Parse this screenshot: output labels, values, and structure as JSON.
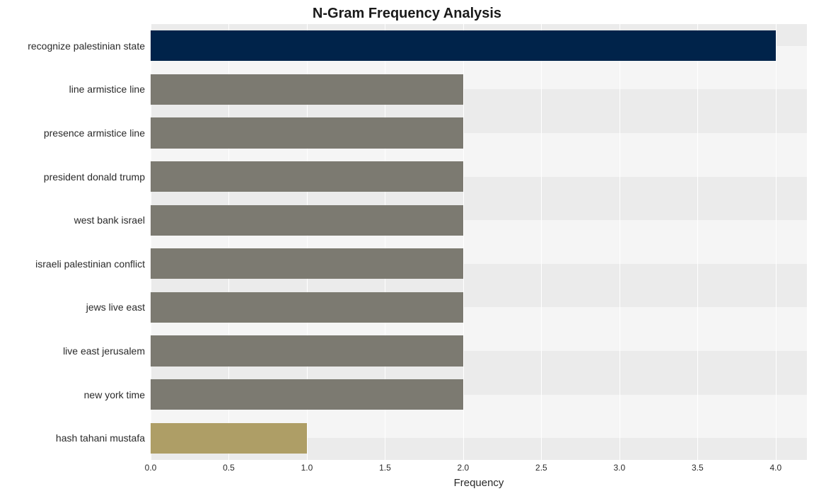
{
  "chart": {
    "type": "bar-horizontal",
    "title": "N-Gram Frequency Analysis",
    "title_fontsize": 20,
    "title_fontweight": "bold",
    "x_axis_label": "Frequency",
    "x_axis_label_fontsize": 15,
    "y_label_fontsize": 14,
    "x_tick_fontsize": 12,
    "background_color": "#ffffff",
    "band_color_dark": "#ebebeb",
    "band_color_light": "#f5f5f5",
    "grid_color": "#ffffff",
    "xlim": [
      0.0,
      4.2
    ],
    "x_ticks": [
      0.0,
      0.5,
      1.0,
      1.5,
      2.0,
      2.5,
      3.0,
      3.5,
      4.0
    ],
    "x_tick_labels": [
      "0.0",
      "0.5",
      "1.0",
      "1.5",
      "2.0",
      "2.5",
      "3.0",
      "3.5",
      "4.0"
    ],
    "bar_height_ratio": 0.7,
    "categories": [
      "recognize palestinian state",
      "line armistice line",
      "presence armistice line",
      "president donald trump",
      "west bank israel",
      "israeli palestinian conflict",
      "jews live east",
      "live east jerusalem",
      "new york time",
      "hash tahani mustafa"
    ],
    "values": [
      4,
      2,
      2,
      2,
      2,
      2,
      2,
      2,
      2,
      1
    ],
    "bar_colors": [
      "#00234a",
      "#7c7a71",
      "#7c7a71",
      "#7c7a71",
      "#7c7a71",
      "#7c7a71",
      "#7c7a71",
      "#7c7a71",
      "#7c7a71",
      "#ae9e66"
    ]
  }
}
